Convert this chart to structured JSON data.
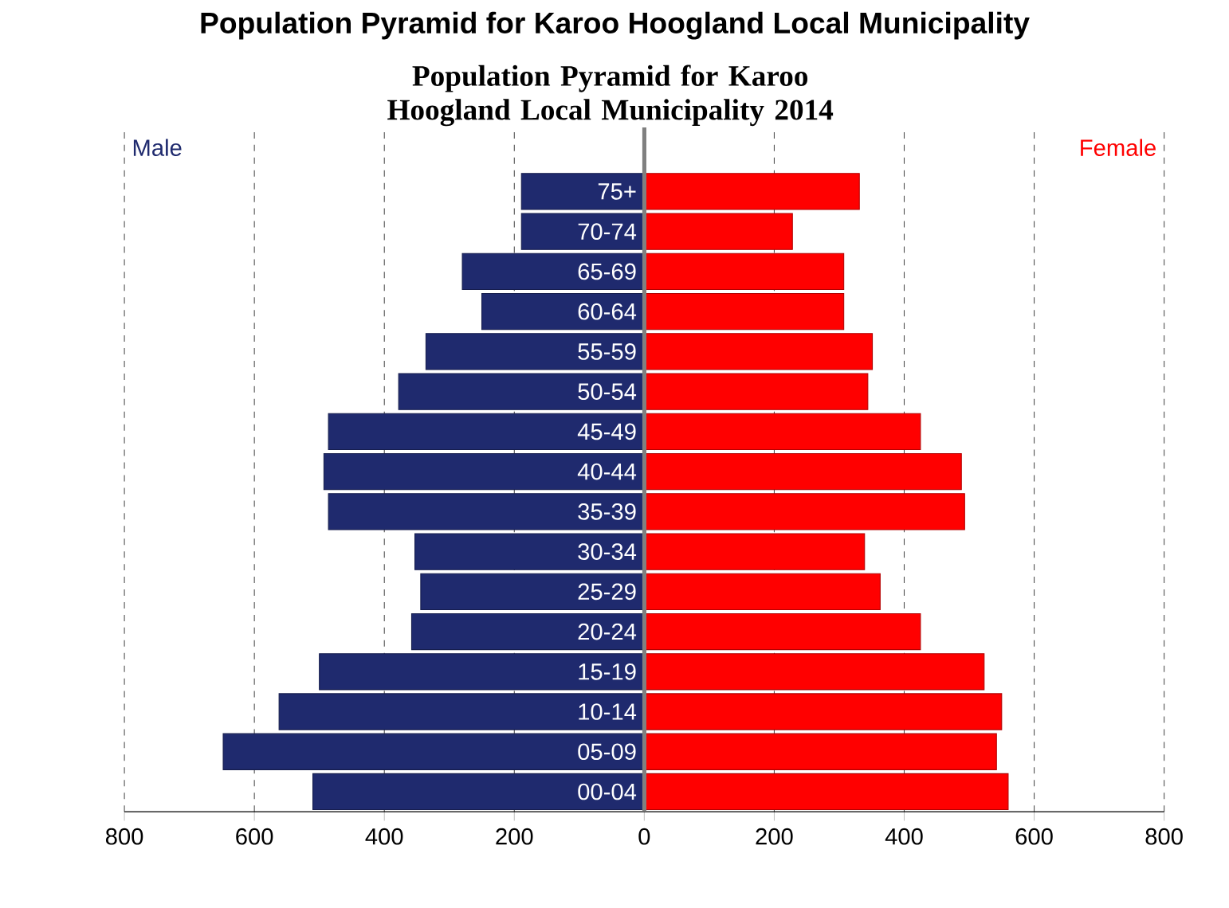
{
  "chart_data": {
    "type": "bar",
    "orientation": "horizontal",
    "title": "Population Pyramid for Karoo Hoogland Local Municipality 2014",
    "annotations": [
      "Population Pyramid for Karoo Hoogland Local Municipality"
    ],
    "categories": [
      "75+",
      "70-74",
      "65-69",
      "60-64",
      "55-59",
      "50-54",
      "45-49",
      "40-44",
      "35-39",
      "30-34",
      "25-29",
      "20-24",
      "15-19",
      "10-14",
      "05-09",
      "00-04"
    ],
    "series": [
      {
        "name": "Male",
        "color": "#1f2a6e",
        "values": [
          -189,
          -189,
          -280,
          -250,
          -336,
          -378,
          -486,
          -493,
          -486,
          -353,
          -344,
          -358,
          -500,
          -562,
          -648,
          -510
        ]
      },
      {
        "name": "Female",
        "color": "#ff0000",
        "values": [
          331,
          228,
          307,
          307,
          351,
          344,
          425,
          488,
          493,
          339,
          363,
          425,
          523,
          550,
          542,
          560
        ]
      }
    ],
    "xlim": [
      -800,
      800
    ],
    "xticks": [
      {
        "value": -800,
        "label": "800"
      },
      {
        "value": -600,
        "label": "600"
      },
      {
        "value": -400,
        "label": "400"
      },
      {
        "value": -200,
        "label": "200"
      },
      0,
      200,
      400,
      600,
      800
    ],
    "grid": "x",
    "stacked": true
  }
}
